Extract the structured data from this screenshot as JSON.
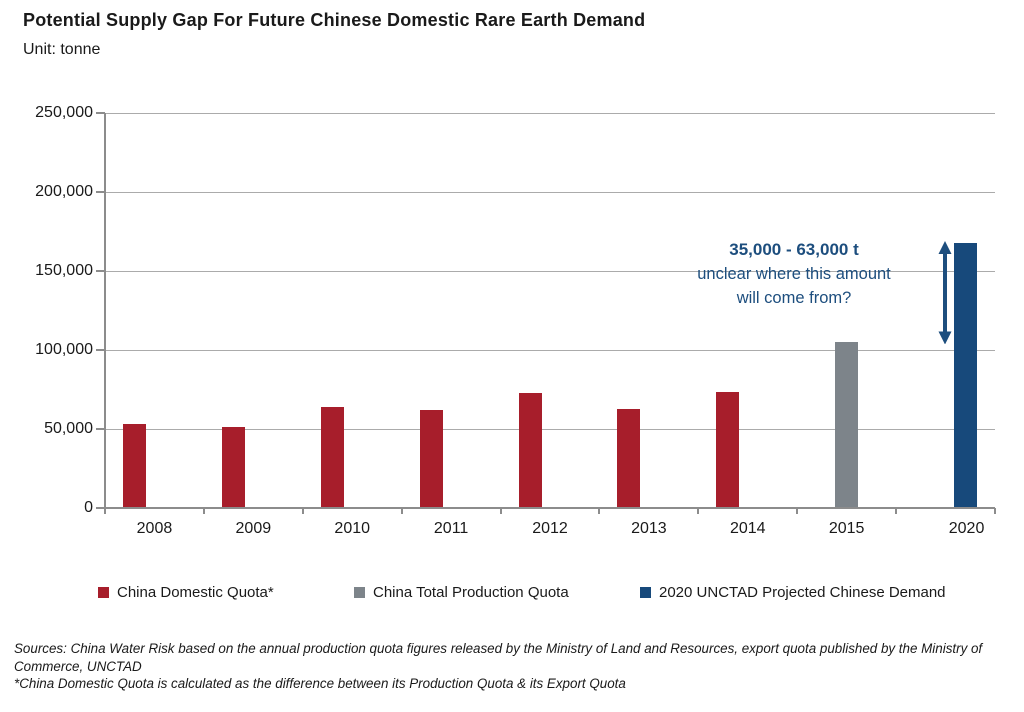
{
  "title": "Potential Supply Gap For Future Chinese Domestic Rare Earth Demand",
  "subtitle": "Unit: tonne",
  "chart_data": {
    "type": "bar",
    "title": "Potential Supply Gap For Future Chinese Domestic Rare Earth Demand",
    "unit": "tonne",
    "categories": [
      "2008",
      "2009",
      "2010",
      "2011",
      "2012",
      "2013",
      "2014",
      "2015",
      "2020"
    ],
    "series": [
      {
        "name": "China Domestic Quota*",
        "color": "#a71e2b",
        "values": [
          53000,
          51000,
          64000,
          62000,
          72500,
          62500,
          73500,
          null,
          null
        ]
      },
      {
        "name": "China Total Production Quota",
        "color": "#7d848a",
        "values": [
          null,
          null,
          null,
          null,
          null,
          null,
          null,
          105000,
          null
        ]
      },
      {
        "name": "2020 UNCTAD Projected Chinese Demand",
        "color": "#17497b",
        "values": [
          null,
          null,
          null,
          null,
          null,
          null,
          null,
          null,
          168000
        ]
      }
    ],
    "ylim": [
      0,
      250000
    ],
    "yticks": [
      {
        "value": 0,
        "label": "0"
      },
      {
        "value": 50000,
        "label": "50,000"
      },
      {
        "value": 100000,
        "label": "100,000"
      },
      {
        "value": 150000,
        "label": "150,000"
      },
      {
        "value": 200000,
        "label": "200,000"
      },
      {
        "value": 250000,
        "label": "250,000"
      }
    ],
    "grid": "horizontal",
    "legend_position": "bottom",
    "annotation": {
      "lines": [
        "35,000 - 63,000 t",
        "unclear where this amount",
        "will come from?"
      ],
      "color": "#1d4e7e",
      "arrow": {
        "type": "vertical-double-headed",
        "from_value": 105000,
        "to_value": 168000
      }
    }
  },
  "footer": {
    "sources": "Sources: China Water Risk based on the annual production quota figures released by the Ministry of Land and Resources, export quota published by the Ministry of Commerce, UNCTAD",
    "note": "*China Domestic Quota is calculated as the difference between its Production Quota & its Export Quota"
  }
}
